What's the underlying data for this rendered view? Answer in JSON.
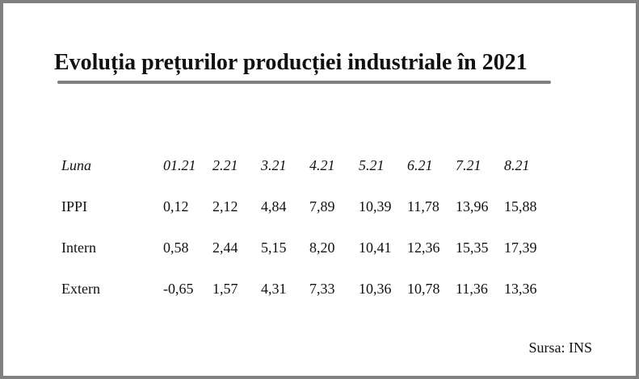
{
  "title": "Evoluția prețurilor producției industriale în 2021",
  "table": {
    "header_label": "Luna",
    "months": [
      "01.21",
      "2.21",
      "3.21",
      "4.21",
      "5.21",
      "6.21",
      "7.21",
      "8.21"
    ],
    "rows": [
      {
        "label": "IPPI",
        "values": [
          "0,12",
          "2,12",
          "4,84",
          "7,89",
          "10,39",
          "11,78",
          "13,96",
          "15,88"
        ]
      },
      {
        "label": "Intern",
        "values": [
          "0,58",
          "2,44",
          "5,15",
          "8,20",
          "10,41",
          "12,36",
          "15,35",
          "17,39"
        ]
      },
      {
        "label": "Extern",
        "values": [
          "-0,65",
          "1,57",
          "4,31",
          "7,33",
          "10,36",
          "10,78",
          "11,36",
          "13,36"
        ]
      }
    ]
  },
  "source": "Sursa: INS",
  "colors": {
    "frame": "#808080",
    "title_rule": "#808080",
    "text": "#111111"
  }
}
